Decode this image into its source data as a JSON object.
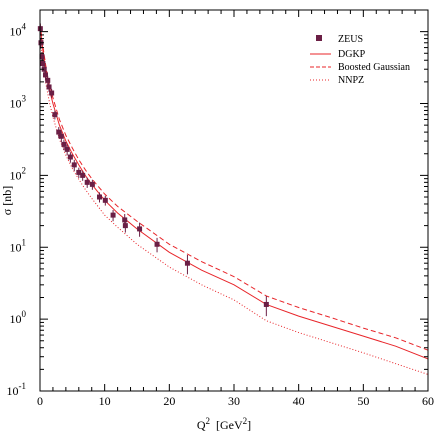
{
  "chart_data": {
    "type": "scatter",
    "xlabel": "Q",
    "xlabel_sup": "2",
    "xlabel_unit": "[GeV",
    "xlabel_unit_sup": "2",
    "xlabel_unit_close": "]",
    "ylabel": "σ [nb]",
    "xlim": [
      0,
      60
    ],
    "ylim": [
      0.1,
      20000
    ],
    "yscale": "log",
    "grid": false,
    "legend_position": "top-right",
    "x_ticks": [
      0,
      10,
      20,
      30,
      40,
      50,
      60
    ],
    "x_tick_labels": [
      "0",
      "10",
      "20",
      "30",
      "40",
      "50",
      "60"
    ],
    "y_ticks": [
      {
        "value": 0.1,
        "base": "10",
        "exp": "-1"
      },
      {
        "value": 1,
        "base": "10",
        "exp": "0"
      },
      {
        "value": 10,
        "base": "10",
        "exp": "1"
      },
      {
        "value": 100,
        "base": "10",
        "exp": "2"
      },
      {
        "value": 1000,
        "base": "10",
        "exp": "3"
      },
      {
        "value": 10000,
        "base": "10",
        "exp": "4"
      }
    ],
    "series": [
      {
        "name": "ZEUS",
        "style": "square-markers",
        "color": "#6b1f45",
        "points": [
          {
            "x": 0.05,
            "y": 11000,
            "err": 2000
          },
          {
            "x": 0.15,
            "y": 7000,
            "err": 1200
          },
          {
            "x": 0.3,
            "y": 4500,
            "err": 700
          },
          {
            "x": 0.45,
            "y": 3600,
            "err": 600
          },
          {
            "x": 0.65,
            "y": 3000,
            "err": 500
          },
          {
            "x": 0.85,
            "y": 2500,
            "err": 400
          },
          {
            "x": 1.2,
            "y": 2100,
            "err": 300
          },
          {
            "x": 1.4,
            "y": 1700,
            "err": 250
          },
          {
            "x": 1.8,
            "y": 1400,
            "err": 200
          },
          {
            "x": 2.3,
            "y": 700,
            "err": 100
          },
          {
            "x": 2.9,
            "y": 400,
            "err": 70
          },
          {
            "x": 3.3,
            "y": 350,
            "err": 60
          },
          {
            "x": 3.7,
            "y": 270,
            "err": 45
          },
          {
            "x": 4.2,
            "y": 230,
            "err": 40
          },
          {
            "x": 4.7,
            "y": 180,
            "err": 30
          },
          {
            "x": 5.3,
            "y": 140,
            "err": 25
          },
          {
            "x": 6.0,
            "y": 110,
            "err": 18
          },
          {
            "x": 6.6,
            "y": 100,
            "err": 16
          },
          {
            "x": 7.3,
            "y": 80,
            "err": 13
          },
          {
            "x": 8.1,
            "y": 75,
            "err": 12
          },
          {
            "x": 9.2,
            "y": 50,
            "err": 8
          },
          {
            "x": 10.1,
            "y": 45,
            "err": 7
          },
          {
            "x": 11.3,
            "y": 28,
            "err": 5
          },
          {
            "x": 13.1,
            "y": 24,
            "err": 5
          },
          {
            "x": 13.2,
            "y": 20,
            "err": 4
          },
          {
            "x": 15.4,
            "y": 18,
            "err": 4
          },
          {
            "x": 18.1,
            "y": 11,
            "err": 2.5
          },
          {
            "x": 22.8,
            "y": 6,
            "err": 1.8
          },
          {
            "x": 35.0,
            "y": 1.6,
            "err": 0.5
          }
        ]
      },
      {
        "name": "DGKP",
        "style": "solid",
        "color": "#e8252a",
        "x": [
          0,
          0.2,
          0.5,
          1,
          1.5,
          2,
          3,
          4,
          5,
          6,
          7,
          8,
          10,
          12,
          15,
          20,
          25,
          30,
          35,
          40,
          45,
          50,
          55,
          60
        ],
        "y": [
          12000,
          8500,
          5000,
          2500,
          1500,
          1000,
          500,
          300,
          200,
          140,
          100,
          75,
          45,
          30,
          18,
          8.5,
          4.8,
          3.0,
          1.6,
          1.1,
          0.8,
          0.58,
          0.42,
          0.28
        ]
      },
      {
        "name": "Boosted Gaussian",
        "style": "dashed",
        "color": "#e8252a",
        "x": [
          0,
          0.2,
          0.5,
          1,
          1.5,
          2,
          3,
          4,
          5,
          6,
          7,
          8,
          10,
          12,
          15,
          20,
          25,
          30,
          35,
          40,
          45,
          50,
          55,
          60
        ],
        "y": [
          13000,
          9500,
          5800,
          2900,
          1800,
          1200,
          600,
          360,
          240,
          165,
          120,
          90,
          55,
          37,
          23,
          11,
          6.3,
          3.9,
          2.1,
          1.45,
          1.05,
          0.75,
          0.55,
          0.37
        ]
      },
      {
        "name": "NNPZ",
        "style": "dotted",
        "color": "#e8252a",
        "x": [
          0,
          0.2,
          0.5,
          1,
          1.5,
          2,
          3,
          4,
          5,
          6,
          7,
          8,
          10,
          12,
          15,
          20,
          25,
          30,
          35,
          40,
          45,
          50,
          55,
          60
        ],
        "y": [
          9000,
          6000,
          3500,
          1700,
          1000,
          650,
          320,
          190,
          125,
          88,
          64,
          48,
          28,
          19,
          11,
          5.3,
          3.0,
          1.85,
          0.95,
          0.65,
          0.47,
          0.34,
          0.24,
          0.17
        ]
      }
    ]
  }
}
